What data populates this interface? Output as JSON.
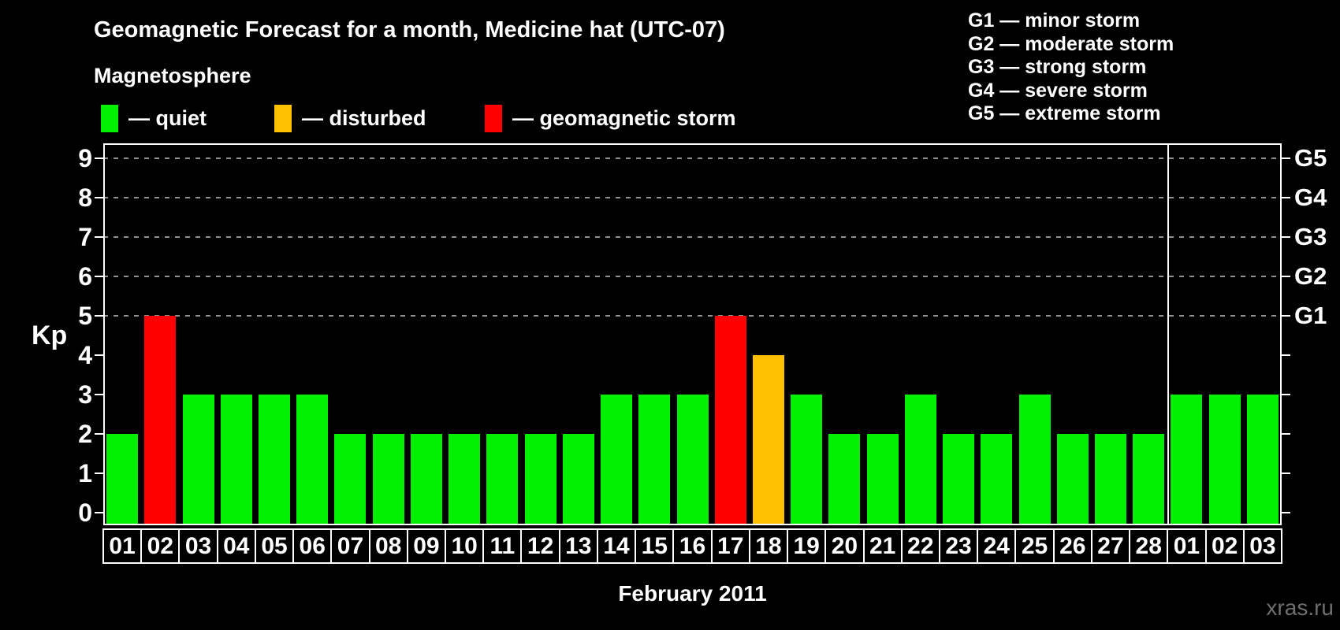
{
  "page": {
    "background": "#000000",
    "watermark": "xras.ru"
  },
  "chart_data": {
    "type": "bar",
    "title": "Geomagnetic Forecast for a month, Medicine hat (UTC-07)",
    "subtitle": "Magnetosphere",
    "xlabel": "February 2011",
    "ylabel": "Kp",
    "ylim": [
      0,
      9
    ],
    "yticks": [
      0,
      1,
      2,
      3,
      4,
      5,
      6,
      7,
      8,
      9
    ],
    "grid_levels": [
      5,
      6,
      7,
      8,
      9
    ],
    "grid_on": true,
    "right_axis_labels": [
      {
        "kp": 5,
        "label": "G1"
      },
      {
        "kp": 6,
        "label": "G2"
      },
      {
        "kp": 7,
        "label": "G3"
      },
      {
        "kp": 8,
        "label": "G4"
      },
      {
        "kp": 9,
        "label": "G5"
      }
    ],
    "g_scale_legend": [
      "G1 — minor storm",
      "G2 — moderate storm",
      "G3 — strong storm",
      "G4 — severe storm",
      "G5 — extreme storm"
    ],
    "legend": [
      {
        "status": "quiet",
        "label": "— quiet",
        "color": "#00f000"
      },
      {
        "status": "disturbed",
        "label": "— disturbed",
        "color": "#ffc000"
      },
      {
        "status": "storm",
        "label": "— geomagnetic storm",
        "color": "#ff0000"
      }
    ],
    "legend_position": "top-left",
    "categories": [
      "01",
      "02",
      "03",
      "04",
      "05",
      "06",
      "07",
      "08",
      "09",
      "10",
      "11",
      "12",
      "13",
      "14",
      "15",
      "16",
      "17",
      "18",
      "19",
      "20",
      "21",
      "22",
      "23",
      "24",
      "25",
      "26",
      "27",
      "28",
      "01",
      "02",
      "03"
    ],
    "values": [
      2,
      5,
      3,
      3,
      3,
      3,
      2,
      2,
      2,
      2,
      2,
      2,
      2,
      3,
      3,
      3,
      5,
      4,
      3,
      2,
      2,
      3,
      2,
      2,
      3,
      2,
      2,
      2,
      3,
      3,
      3
    ],
    "statuses": [
      "quiet",
      "storm",
      "quiet",
      "quiet",
      "quiet",
      "quiet",
      "quiet",
      "quiet",
      "quiet",
      "quiet",
      "quiet",
      "quiet",
      "quiet",
      "quiet",
      "quiet",
      "quiet",
      "storm",
      "disturbed",
      "quiet",
      "quiet",
      "quiet",
      "quiet",
      "quiet",
      "quiet",
      "quiet",
      "quiet",
      "quiet",
      "quiet",
      "quiet",
      "quiet",
      "quiet"
    ],
    "month_separator_index": 28
  }
}
